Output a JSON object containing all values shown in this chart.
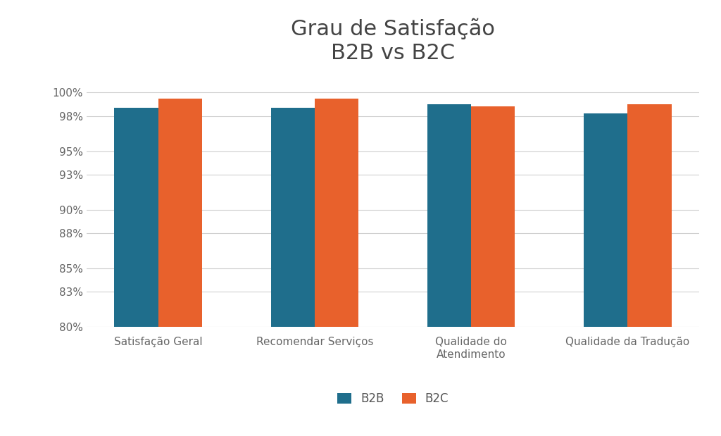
{
  "title": "Grau de Satisfação\nB2B vs B2C",
  "categories": [
    "Satisfação Geral",
    "Recomendar Serviços",
    "Qualidade do\nAtendimento",
    "Qualidade da Tradução"
  ],
  "b2b_values": [
    98.7,
    98.7,
    99.0,
    98.2
  ],
  "b2c_values": [
    99.5,
    99.5,
    98.8,
    99.0
  ],
  "b2b_color": "#1F6E8C",
  "b2c_color": "#E8612C",
  "b2b_label": "B2B",
  "b2c_label": "B2C",
  "ylim_min": 80,
  "ylim_max": 101.2,
  "yticks": [
    80,
    83,
    85,
    88,
    90,
    93,
    95,
    98,
    100
  ],
  "background_color": "#ffffff",
  "title_fontsize": 22,
  "axis_fontsize": 11,
  "legend_fontsize": 12,
  "bar_width": 0.28,
  "grid_color": "#d0d0d0"
}
